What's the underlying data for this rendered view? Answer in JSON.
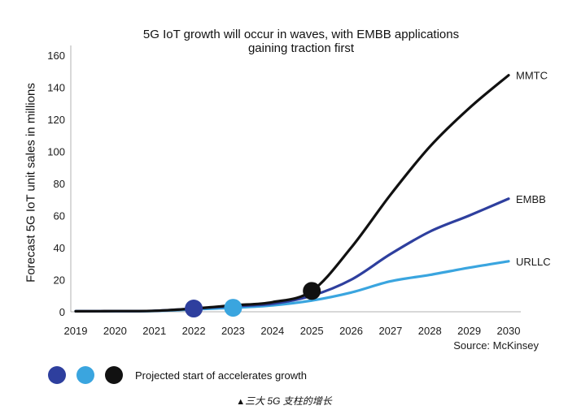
{
  "chart_data": {
    "type": "line",
    "title_lines": [
      "5G IoT growth will occur in waves, with EMBB applications",
      "gaining traction first"
    ],
    "xlabel": "",
    "ylabel": "Forecast 5G IoT unit sales in millions",
    "xlim": [
      2019,
      2030
    ],
    "ylim": [
      0,
      160
    ],
    "x_ticks": [
      2019,
      2020,
      2021,
      2022,
      2023,
      2024,
      2025,
      2026,
      2027,
      2028,
      2029,
      2030
    ],
    "y_ticks": [
      0,
      20,
      40,
      60,
      80,
      100,
      120,
      140,
      160
    ],
    "grid": false,
    "x": [
      2019,
      2020,
      2021,
      2022,
      2023,
      2024,
      2025,
      2026,
      2027,
      2028,
      2029,
      2030
    ],
    "series": [
      {
        "name": "URLLC",
        "color": "#3aa5df",
        "values": [
          0.3,
          0.3,
          0.5,
          1.5,
          2.5,
          4,
          7,
          12,
          19,
          23,
          27.5,
          31.5
        ],
        "acceleration_point": {
          "x": 2023,
          "y": 2.5
        }
      },
      {
        "name": "EMBB",
        "color": "#2e3f9e",
        "values": [
          0.3,
          0.4,
          0.6,
          2,
          3.5,
          5,
          10,
          20,
          36,
          50,
          60,
          70.5
        ],
        "acceleration_point": {
          "x": 2022,
          "y": 2
        }
      },
      {
        "name": "MMTC",
        "color": "#111111",
        "values": [
          0.3,
          0.4,
          0.6,
          2,
          4,
          6,
          13,
          40,
          73,
          103,
          127,
          147.5
        ],
        "acceleration_point": {
          "x": 2025,
          "y": 13
        }
      }
    ],
    "source": "Source: McKinsey"
  },
  "legend": {
    "dot_colors": [
      "#2e3f9e",
      "#3aa5df",
      "#111111"
    ],
    "text": "Projected start of accelerates growth"
  },
  "caption": {
    "triangle": "▲",
    "text": "三大 5G 支柱的增长"
  }
}
